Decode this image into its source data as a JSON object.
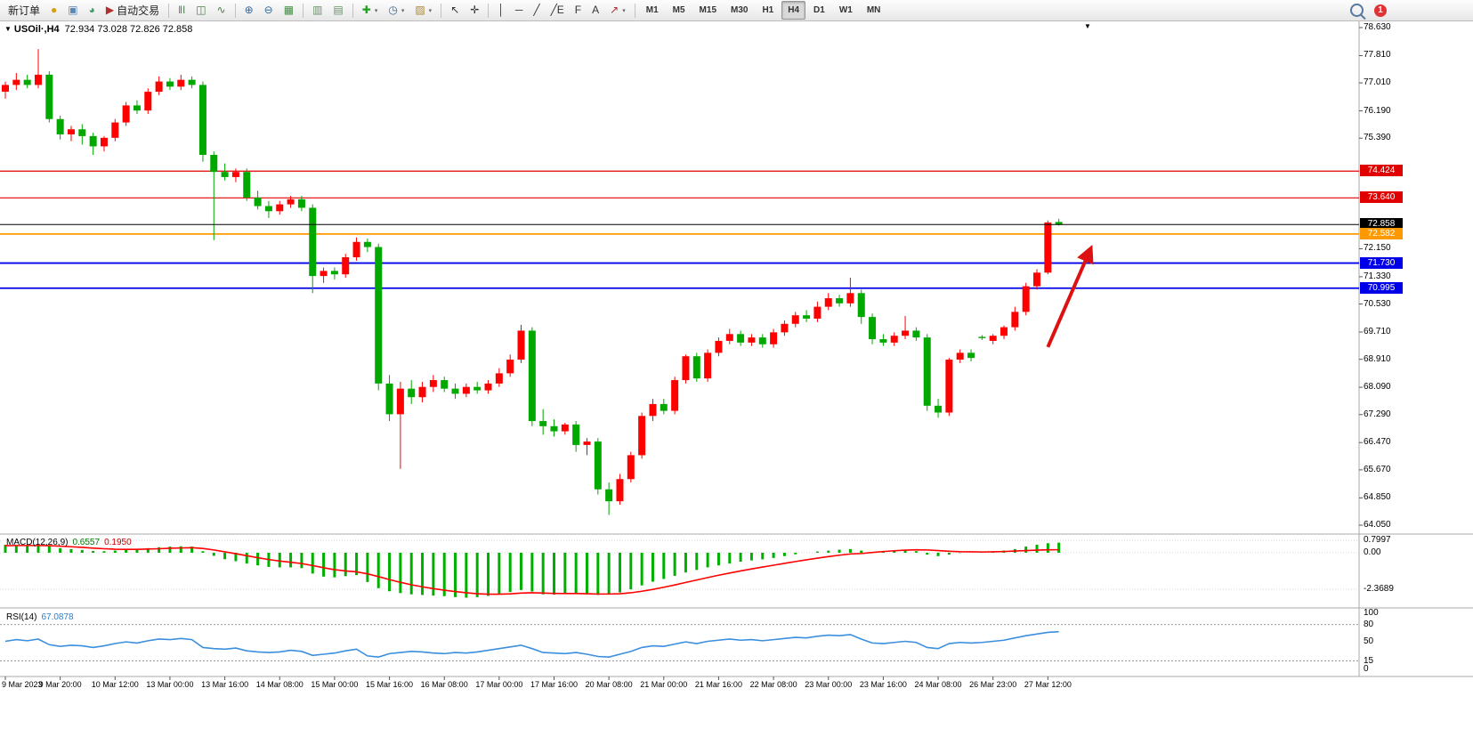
{
  "colors": {
    "up_candle": "#ff0000",
    "down_candle": "#00a800",
    "macd_hist": "#00b000",
    "macd_signal": "#ff0000",
    "rsi_line": "#3c8fde",
    "level_red": "#e00000",
    "level_blue": "#0000e8",
    "level_orange": "#ff9900",
    "current_price": "#000000",
    "arrow": "#dd1111"
  },
  "icons": {
    "dropdown": "▾",
    "chart_expand": "▼",
    "scroll_marker": "▼"
  },
  "toolbar": {
    "badge": "1",
    "active_timeframe": "H4",
    "timeframes": [
      "M1",
      "M5",
      "M15",
      "M30",
      "H1",
      "H4",
      "D1",
      "W1",
      "MN"
    ],
    "buttons": [
      {
        "name": "new-order-button",
        "label": "新订单"
      },
      {
        "name": "quotes-button",
        "icon": "coin-icon",
        "glyph": "●",
        "glyph_color": "#d4a017"
      },
      {
        "name": "chart-window-button",
        "icon": "window-icon",
        "glyph": "▣",
        "glyph_color": "#5b87b7"
      },
      {
        "name": "data-center-button",
        "icon": "globe-icon",
        "glyph": "◕",
        "glyph_color": "#3f9b68"
      },
      {
        "name": "autotrading-button",
        "icon": "autotrading-icon",
        "glyph": "▶",
        "glyph_color": "#b03030",
        "label": "自动交易"
      },
      {
        "type": "sep"
      },
      {
        "name": "bar-chart-button",
        "icon": "bar-chart-icon",
        "glyph": "ǁǀ",
        "glyph_color": "#4a7d4a"
      },
      {
        "name": "candlestick-chart-button",
        "icon": "candlestick-icon",
        "glyph": "◫",
        "glyph_color": "#4a7d4a"
      },
      {
        "name": "line-chart-button",
        "icon": "line-chart-icon",
        "glyph": "∿",
        "glyph_color": "#4a7d4a"
      },
      {
        "type": "sep"
      },
      {
        "name": "zoom-in-button",
        "icon": "zoom-in-icon",
        "glyph": "⊕",
        "glyph_color": "#35689a"
      },
      {
        "name": "zoom-out-button",
        "icon": "zoom-out-icon",
        "glyph": "⊖",
        "glyph_color": "#35689a"
      },
      {
        "name": "tile-windows-button",
        "icon": "tile-windows-icon",
        "glyph": "▦",
        "glyph_color": "#3f8f3f"
      },
      {
        "type": "sep"
      },
      {
        "name": "auto-scroll-button",
        "icon": "auto-scroll-icon",
        "glyph": "▥",
        "glyph_color": "#6a8f6a"
      },
      {
        "name": "chart-shift-button",
        "icon": "chart-shift-icon",
        "glyph": "▤",
        "glyph_color": "#6a8f6a"
      },
      {
        "type": "sep"
      },
      {
        "name": "indicators-button",
        "icon": "indicators-icon",
        "glyph": "✚",
        "glyph_color": "#1fa01f",
        "dropdown": true
      },
      {
        "name": "periods-button",
        "icon": "clock-icon",
        "glyph": "◷",
        "glyph_color": "#35689a",
        "dropdown": true
      },
      {
        "name": "templates-button",
        "icon": "template-icon",
        "glyph": "▨",
        "glyph_color": "#a9883a",
        "dropdown": true
      },
      {
        "type": "sep"
      },
      {
        "name": "cursor-button",
        "icon": "cursor-icon",
        "glyph": "↖",
        "glyph_color": "#333333"
      },
      {
        "name": "crosshair-button",
        "icon": "crosshair-icon",
        "glyph": "✛",
        "glyph_color": "#333333"
      },
      {
        "type": "sep"
      },
      {
        "name": "vertical-line-button",
        "icon": "vertical-line-icon",
        "glyph": "│",
        "glyph_color": "#333333"
      },
      {
        "name": "horizontal-line-button",
        "icon": "horizontal-line-icon",
        "glyph": "─",
        "glyph_color": "#333333"
      },
      {
        "name": "trendline-button",
        "icon": "trendline-icon",
        "glyph": "╱",
        "glyph_color": "#333333"
      },
      {
        "name": "channel-button",
        "icon": "channel-icon",
        "glyph": "╱E",
        "glyph_color": "#333333"
      },
      {
        "name": "fibonacci-button",
        "icon": "fibonacci-icon",
        "glyph": "F",
        "glyph_color": "#333333"
      },
      {
        "name": "text-button",
        "icon": "text-icon",
        "glyph": "A",
        "glyph_color": "#333333"
      },
      {
        "name": "arrows-button",
        "icon": "arrow-symbol-icon",
        "glyph": "↗",
        "glyph_color": "#b03030",
        "dropdown": true
      },
      {
        "type": "sep"
      }
    ]
  },
  "chart_header": {
    "symbol": "USOil·,H4",
    "ohlc": "72.934 73.028 72.826 72.858"
  },
  "price_axis": {
    "labels": [
      "78.630",
      "77.810",
      "77.010",
      "76.190",
      "75.390",
      "72.150",
      "71.330",
      "70.530",
      "69.710",
      "68.910",
      "68.090",
      "67.290",
      "66.470",
      "65.670",
      "64.850",
      "64.050"
    ],
    "badges": [
      {
        "value": "74.424",
        "color": "#e00000"
      },
      {
        "value": "73.640",
        "color": "#e00000"
      },
      {
        "value": "72.858",
        "color": "#000000"
      },
      {
        "value": "72.582",
        "color": "#ff9900"
      },
      {
        "value": "71.730",
        "color": "#0000e8"
      },
      {
        "value": "70.995",
        "color": "#0000e8"
      }
    ]
  },
  "chart_data": {
    "type": "candlestick",
    "symbol": "USOil",
    "period": "H4",
    "ohlc_current": {
      "open": 72.934,
      "high": 73.028,
      "low": 72.826,
      "close": 72.858
    },
    "y_range": [
      64.05,
      78.63
    ],
    "up_color": "#ff0000",
    "down_color": "#00a800",
    "time_labels": [
      "9 Mar 2023",
      "9 Mar 20:00",
      "10 Mar 12:00",
      "13 Mar 00:00",
      "13 Mar 16:00",
      "14 Mar 08:00",
      "15 Mar 00:00",
      "15 Mar 16:00",
      "16 Mar 08:00",
      "17 Mar 00:00",
      "17 Mar 16:00",
      "20 Mar 08:00",
      "21 Mar 00:00",
      "21 Mar 16:00",
      "22 Mar 08:00",
      "23 Mar 00:00",
      "23 Mar 16:00",
      "24 Mar 08:00",
      "26 Mar 23:00",
      "27 Mar 12:00"
    ],
    "levels": [
      {
        "value": "74.424",
        "price": 74.424,
        "color": "#e00000",
        "width": 1.2,
        "above": false
      },
      {
        "value": "73.640",
        "price": 73.64,
        "color": "#e00000",
        "width": 1.2,
        "above": false
      },
      {
        "value": "72.582",
        "price": 72.582,
        "color": "#ff9900",
        "width": 1.8,
        "above": false
      },
      {
        "value": "71.730",
        "price": 71.73,
        "color": "#0000e8",
        "width": 1.8,
        "above": false
      },
      {
        "value": "70.995",
        "price": 70.995,
        "color": "#0000e8",
        "width": 1.8,
        "above": false
      },
      {
        "value": "72.858",
        "price": 72.858,
        "color": "#000000",
        "width": 1,
        "above": true
      }
    ],
    "annotation_arrow": {
      "from_index": 95.0,
      "from_price": 69.27,
      "to_index": 98.6,
      "to_price": 71.93,
      "color": "#dd1111"
    },
    "candles": [
      [
        76.75,
        77.05,
        76.55,
        76.95
      ],
      [
        76.95,
        77.3,
        76.8,
        77.1
      ],
      [
        77.1,
        77.25,
        76.85,
        76.95
      ],
      [
        76.95,
        78.0,
        76.85,
        77.25
      ],
      [
        77.25,
        77.35,
        75.85,
        75.95
      ],
      [
        75.95,
        76.05,
        75.35,
        75.5
      ],
      [
        75.5,
        75.75,
        75.3,
        75.65
      ],
      [
        75.65,
        75.8,
        75.2,
        75.45
      ],
      [
        75.45,
        75.55,
        74.9,
        75.15
      ],
      [
        75.15,
        75.45,
        75.0,
        75.4
      ],
      [
        75.4,
        75.95,
        75.3,
        75.85
      ],
      [
        75.85,
        76.45,
        75.75,
        76.35
      ],
      [
        76.35,
        76.5,
        76.1,
        76.2
      ],
      [
        76.2,
        76.85,
        76.1,
        76.75
      ],
      [
        76.75,
        77.2,
        76.65,
        77.05
      ],
      [
        77.05,
        77.15,
        76.8,
        76.9
      ],
      [
        76.9,
        77.25,
        76.8,
        77.1
      ],
      [
        77.1,
        77.2,
        76.85,
        76.95
      ],
      [
        76.95,
        77.05,
        74.7,
        74.9
      ],
      [
        74.9,
        75.0,
        72.4,
        74.4
      ],
      [
        74.4,
        74.65,
        74.15,
        74.25
      ],
      [
        74.25,
        74.5,
        74.1,
        74.4
      ],
      [
        74.4,
        74.5,
        73.55,
        73.65
      ],
      [
        73.65,
        73.85,
        73.3,
        73.4
      ],
      [
        73.4,
        73.55,
        73.05,
        73.25
      ],
      [
        73.25,
        73.55,
        73.15,
        73.45
      ],
      [
        73.45,
        73.7,
        73.35,
        73.6
      ],
      [
        73.6,
        73.7,
        73.25,
        73.35
      ],
      [
        73.35,
        73.45,
        70.85,
        71.35
      ],
      [
        71.35,
        71.6,
        71.15,
        71.5
      ],
      [
        71.5,
        71.6,
        71.25,
        71.4
      ],
      [
        71.4,
        72.0,
        71.3,
        71.9
      ],
      [
        71.9,
        72.48,
        71.8,
        72.35
      ],
      [
        72.35,
        72.45,
        72.05,
        72.2
      ],
      [
        72.2,
        72.3,
        68.0,
        68.2
      ],
      [
        68.2,
        68.45,
        67.1,
        67.3
      ],
      [
        67.3,
        68.25,
        65.7,
        68.05
      ],
      [
        68.05,
        68.3,
        67.6,
        67.8
      ],
      [
        67.8,
        68.25,
        67.65,
        68.1
      ],
      [
        68.1,
        68.45,
        67.95,
        68.3
      ],
      [
        68.3,
        68.4,
        67.95,
        68.05
      ],
      [
        68.05,
        68.2,
        67.75,
        67.9
      ],
      [
        67.9,
        68.2,
        67.8,
        68.1
      ],
      [
        68.1,
        68.25,
        67.9,
        68.0
      ],
      [
        68.0,
        68.3,
        67.9,
        68.2
      ],
      [
        68.2,
        68.65,
        68.1,
        68.5
      ],
      [
        68.5,
        69.05,
        68.4,
        68.9
      ],
      [
        68.9,
        69.92,
        68.8,
        69.75
      ],
      [
        69.75,
        69.85,
        66.95,
        67.1
      ],
      [
        67.1,
        67.45,
        66.7,
        66.95
      ],
      [
        66.95,
        67.15,
        66.65,
        66.8
      ],
      [
        66.8,
        67.05,
        66.7,
        67.0
      ],
      [
        67.0,
        67.1,
        66.2,
        66.4
      ],
      [
        66.4,
        66.6,
        66.1,
        66.5
      ],
      [
        66.5,
        66.6,
        64.95,
        65.1
      ],
      [
        65.1,
        65.3,
        64.35,
        64.75
      ],
      [
        64.75,
        65.55,
        64.65,
        65.4
      ],
      [
        65.4,
        66.2,
        65.3,
        66.1
      ],
      [
        66.1,
        67.35,
        66.0,
        67.25
      ],
      [
        67.25,
        67.75,
        67.1,
        67.6
      ],
      [
        67.6,
        67.75,
        67.3,
        67.4
      ],
      [
        67.4,
        68.4,
        67.3,
        68.3
      ],
      [
        68.3,
        69.05,
        68.2,
        69.0
      ],
      [
        69.0,
        69.1,
        68.25,
        68.35
      ],
      [
        68.35,
        69.2,
        68.25,
        69.1
      ],
      [
        69.1,
        69.55,
        69.0,
        69.45
      ],
      [
        69.45,
        69.8,
        69.35,
        69.65
      ],
      [
        69.65,
        69.75,
        69.3,
        69.4
      ],
      [
        69.4,
        69.65,
        69.3,
        69.55
      ],
      [
        69.55,
        69.65,
        69.25,
        69.35
      ],
      [
        69.35,
        69.8,
        69.25,
        69.7
      ],
      [
        69.7,
        70.05,
        69.6,
        69.95
      ],
      [
        69.95,
        70.3,
        69.85,
        70.2
      ],
      [
        70.2,
        70.35,
        70.0,
        70.1
      ],
      [
        70.1,
        70.6,
        70.0,
        70.45
      ],
      [
        70.45,
        70.85,
        70.35,
        70.7
      ],
      [
        70.7,
        70.8,
        70.45,
        70.55
      ],
      [
        70.55,
        71.3,
        70.45,
        70.85
      ],
      [
        70.85,
        70.95,
        69.95,
        70.15
      ],
      [
        70.15,
        70.25,
        69.35,
        69.5
      ],
      [
        69.5,
        69.65,
        69.3,
        69.4
      ],
      [
        69.4,
        69.7,
        69.3,
        69.6
      ],
      [
        69.6,
        70.18,
        69.5,
        69.75
      ],
      [
        69.75,
        69.85,
        69.45,
        69.55
      ],
      [
        69.55,
        69.65,
        67.4,
        67.55
      ],
      [
        67.55,
        67.75,
        67.2,
        67.35
      ],
      [
        67.35,
        68.95,
        67.25,
        68.9
      ],
      [
        68.9,
        69.2,
        68.8,
        69.1
      ],
      [
        69.1,
        69.2,
        68.85,
        68.95
      ],
      [
        69.55,
        69.62,
        69.48,
        69.55
      ],
      [
        69.45,
        69.65,
        69.35,
        69.6
      ],
      [
        69.6,
        69.9,
        69.5,
        69.85
      ],
      [
        69.85,
        70.45,
        69.75,
        70.3
      ],
      [
        70.3,
        71.15,
        70.2,
        71.05
      ],
      [
        71.05,
        71.55,
        70.95,
        71.45
      ],
      [
        71.45,
        72.98,
        71.4,
        72.92
      ],
      [
        72.934,
        73.028,
        72.826,
        72.858
      ]
    ],
    "macd": {
      "title": "MACD(12,26,9)",
      "value_main": "0.6557",
      "value_signal": "0.1950",
      "axis_labels": [
        "0.7997",
        "0.00",
        "-2.3689"
      ],
      "axis_values": [
        0.7997,
        0,
        -2.3689
      ],
      "histogram": [
        0.52,
        0.5,
        0.47,
        0.5,
        0.42,
        0.3,
        0.24,
        0.18,
        0.12,
        0.1,
        0.14,
        0.2,
        0.24,
        0.3,
        0.36,
        0.4,
        0.42,
        0.4,
        0.1,
        -0.2,
        -0.42,
        -0.55,
        -0.7,
        -0.82,
        -0.92,
        -0.95,
        -0.95,
        -1.0,
        -1.35,
        -1.55,
        -1.6,
        -1.52,
        -1.45,
        -1.9,
        -2.3,
        -2.5,
        -2.62,
        -2.7,
        -2.74,
        -2.78,
        -2.82,
        -2.88,
        -2.92,
        -2.88,
        -2.8,
        -2.68,
        -2.55,
        -2.42,
        -2.52,
        -2.7,
        -2.72,
        -2.68,
        -2.66,
        -2.7,
        -2.74,
        -2.7,
        -2.58,
        -2.38,
        -2.12,
        -1.88,
        -1.7,
        -1.5,
        -1.28,
        -1.12,
        -0.95,
        -0.82,
        -0.7,
        -0.58,
        -0.5,
        -0.43,
        -0.34,
        -0.22,
        -0.1,
        0.0,
        0.08,
        0.14,
        0.2,
        0.24,
        0.14,
        0.02,
        0.06,
        0.12,
        0.18,
        0.1,
        -0.12,
        -0.22,
        -0.12,
        -0.02,
        0.0,
        0.02,
        0.06,
        0.14,
        0.24,
        0.4,
        0.52,
        0.62,
        0.6557
      ],
      "signal": [
        0.46,
        0.47,
        0.47,
        0.47,
        0.46,
        0.43,
        0.39,
        0.35,
        0.3,
        0.26,
        0.23,
        0.22,
        0.22,
        0.24,
        0.26,
        0.29,
        0.31,
        0.33,
        0.28,
        0.18,
        0.06,
        -0.06,
        -0.19,
        -0.32,
        -0.44,
        -0.54,
        -0.62,
        -0.7,
        -0.83,
        -0.97,
        -1.1,
        -1.18,
        -1.24,
        -1.37,
        -1.55,
        -1.74,
        -1.92,
        -2.08,
        -2.21,
        -2.33,
        -2.43,
        -2.52,
        -2.6,
        -2.66,
        -2.69,
        -2.69,
        -2.67,
        -2.62,
        -2.6,
        -2.62,
        -2.64,
        -2.65,
        -2.65,
        -2.66,
        -2.68,
        -2.68,
        -2.66,
        -2.6,
        -2.5,
        -2.38,
        -2.24,
        -2.09,
        -1.93,
        -1.77,
        -1.61,
        -1.46,
        -1.32,
        -1.18,
        -1.05,
        -0.93,
        -0.81,
        -0.69,
        -0.57,
        -0.46,
        -0.35,
        -0.25,
        -0.16,
        -0.08,
        -0.05,
        0.02,
        0.08,
        0.13,
        0.17,
        0.19,
        0.18,
        0.14,
        0.1,
        0.07,
        0.06,
        0.05,
        0.06,
        0.08,
        0.11,
        0.14,
        0.17,
        0.19,
        0.195
      ]
    },
    "rsi": {
      "title": "RSI(14)",
      "value": "67.0878",
      "axis_labels": [
        "100",
        "80",
        "50",
        "15",
        "0"
      ],
      "axis_values": [
        100,
        80,
        50,
        15,
        0
      ],
      "level_values": [
        80,
        15
      ],
      "series": [
        50,
        53,
        51,
        54,
        44,
        41,
        43,
        42,
        39,
        42,
        46,
        49,
        47,
        51,
        54,
        53,
        55,
        53,
        39,
        37,
        36,
        38,
        33,
        31,
        30,
        31,
        34,
        32,
        25,
        27,
        29,
        33,
        36,
        24,
        22,
        28,
        30,
        32,
        31,
        29,
        28,
        30,
        29,
        31,
        34,
        37,
        40,
        43,
        37,
        30,
        29,
        28,
        30,
        27,
        23,
        22,
        27,
        32,
        39,
        42,
        41,
        45,
        49,
        46,
        50,
        52,
        54,
        52,
        53,
        51,
        53,
        55,
        57,
        56,
        59,
        61,
        60,
        62,
        54,
        47,
        46,
        48,
        50,
        48,
        39,
        37,
        46,
        48,
        47,
        48,
        50,
        52,
        56,
        60,
        63,
        66,
        67.09
      ]
    }
  }
}
